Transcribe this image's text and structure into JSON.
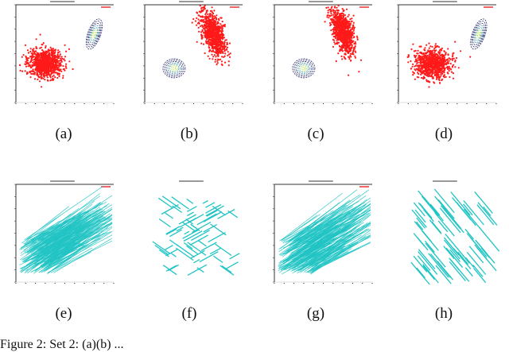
{
  "figure": {
    "subfigure_labels": [
      "(a)",
      "(b)",
      "(c)",
      "(d)",
      "(e)",
      "(f)",
      "(g)",
      "(h)"
    ],
    "caption_fragment": "Figure 2: Set 2: (a)(b) ..."
  },
  "panels_top": [
    {
      "label": "(a)",
      "cloud_center": [
        0.3,
        0.4
      ],
      "cloud_orientation": "round",
      "contour_center": [
        0.8,
        0.7
      ],
      "contour_orientation": "tilted-ellipse"
    },
    {
      "label": "(b)",
      "cloud_center": [
        0.7,
        0.7
      ],
      "cloud_orientation": "tilted-ellipse",
      "contour_center": [
        0.3,
        0.35
      ],
      "contour_orientation": "round"
    },
    {
      "label": "(c)",
      "cloud_center": [
        0.7,
        0.72
      ],
      "cloud_orientation": "tilted-ellipse",
      "contour_center": [
        0.3,
        0.35
      ],
      "contour_orientation": "round"
    },
    {
      "label": "(d)",
      "cloud_center": [
        0.35,
        0.4
      ],
      "cloud_orientation": "round",
      "contour_center": [
        0.82,
        0.7
      ],
      "contour_orientation": "tilted-ellipse"
    }
  ],
  "panels_bottom": [
    {
      "label": "(e)",
      "style": "dense-rising-lines",
      "direction": "up"
    },
    {
      "label": "(f)",
      "style": "sparse-scattered-lines",
      "direction": "mixed"
    },
    {
      "label": "(g)",
      "style": "dense-rising-lines",
      "direction": "up"
    },
    {
      "label": "(h)",
      "style": "sparse-falling-lines",
      "direction": "down"
    }
  ],
  "colors": {
    "points": "#ff1a1a",
    "contour_outer": "#2b2f6e",
    "contour_mid": "#3b8fa8",
    "contour_inner": "#b9e04a",
    "lines": "#22c4c4",
    "axis": "#333333"
  }
}
